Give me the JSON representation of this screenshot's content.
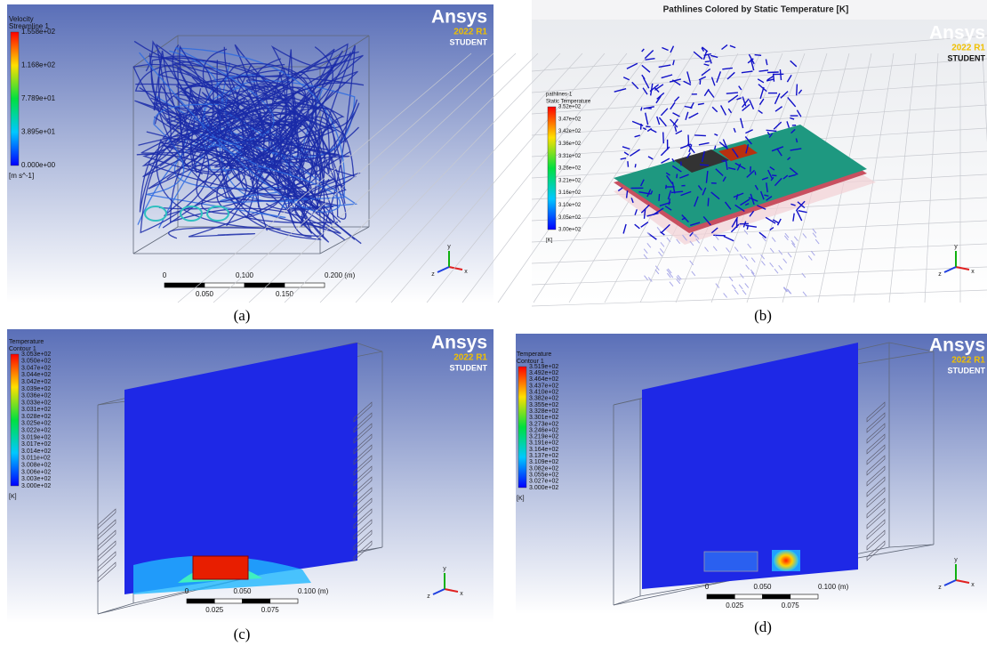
{
  "panels": [
    {
      "label": "(a)",
      "legend": {
        "title": [
          "Velocity",
          "Streamline 1"
        ],
        "values": [
          "1.558e+02",
          "1.168e+02",
          "7.789e+01",
          "3.895e+01",
          "0.000e+00"
        ],
        "unit": "[m s^-1]"
      },
      "logo": {
        "brand": "Ansys",
        "version": "2022 R1",
        "edition": "STUDENT"
      },
      "scale": {
        "top": [
          "0",
          "0.100",
          "0.200  (m)"
        ],
        "bottom": [
          "0.050",
          "0.150"
        ]
      },
      "triad": [
        "x",
        "y",
        "z"
      ]
    },
    {
      "label": "(b)",
      "title": "Pathlines Colored by Static Temperature [K]",
      "legend": {
        "title": [
          "pathlines-1",
          "Static Temperature"
        ],
        "values": [
          "3.52e+02",
          "3.47e+02",
          "3.42e+02",
          "3.36e+02",
          "3.31e+02",
          "3.26e+02",
          "3.21e+02",
          "3.16e+02",
          "3.10e+02",
          "3.05e+02",
          "3.00e+02"
        ],
        "unit": "[K]"
      },
      "logo": {
        "brand": "Ansys",
        "version": "2022 R1",
        "edition": "STUDENT"
      },
      "triad": [
        "x",
        "y",
        "z"
      ]
    },
    {
      "label": "(c)",
      "legend": {
        "title": [
          "Temperature",
          "Contour 1"
        ],
        "values": [
          "3.053e+02",
          "3.050e+02",
          "3.047e+02",
          "3.044e+02",
          "3.042e+02",
          "3.039e+02",
          "3.036e+02",
          "3.033e+02",
          "3.031e+02",
          "3.028e+02",
          "3.025e+02",
          "3.022e+02",
          "3.019e+02",
          "3.017e+02",
          "3.014e+02",
          "3.011e+02",
          "3.008e+02",
          "3.006e+02",
          "3.003e+02",
          "3.000e+02"
        ],
        "unit": "[K]"
      },
      "logo": {
        "brand": "Ansys",
        "version": "2022 R1",
        "edition": "STUDENT"
      },
      "scale": {
        "top": [
          "0",
          "0.050",
          "0.100  (m)"
        ],
        "bottom": [
          "0.025",
          "0.075"
        ]
      },
      "triad": [
        "x",
        "y",
        "z"
      ]
    },
    {
      "label": "(d)",
      "legend": {
        "title": [
          "Temperature",
          "Contour 1"
        ],
        "values": [
          "3.519e+02",
          "3.492e+02",
          "3.464e+02",
          "3.437e+02",
          "3.410e+02",
          "3.382e+02",
          "3.355e+02",
          "3.328e+02",
          "3.301e+02",
          "3.273e+02",
          "3.246e+02",
          "3.219e+02",
          "3.191e+02",
          "3.164e+02",
          "3.137e+02",
          "3.109e+02",
          "3.082e+02",
          "3.055e+02",
          "3.027e+02",
          "3.000e+02"
        ],
        "unit": "[K]"
      },
      "logo": {
        "brand": "Ansys",
        "version": "2022 R1",
        "edition": "STUDENT"
      },
      "scale": {
        "top": [
          "0",
          "0.050",
          "0.100  (m)"
        ],
        "bottom": [
          "0.025",
          "0.075"
        ]
      },
      "triad": [
        "x",
        "y",
        "z"
      ]
    }
  ]
}
